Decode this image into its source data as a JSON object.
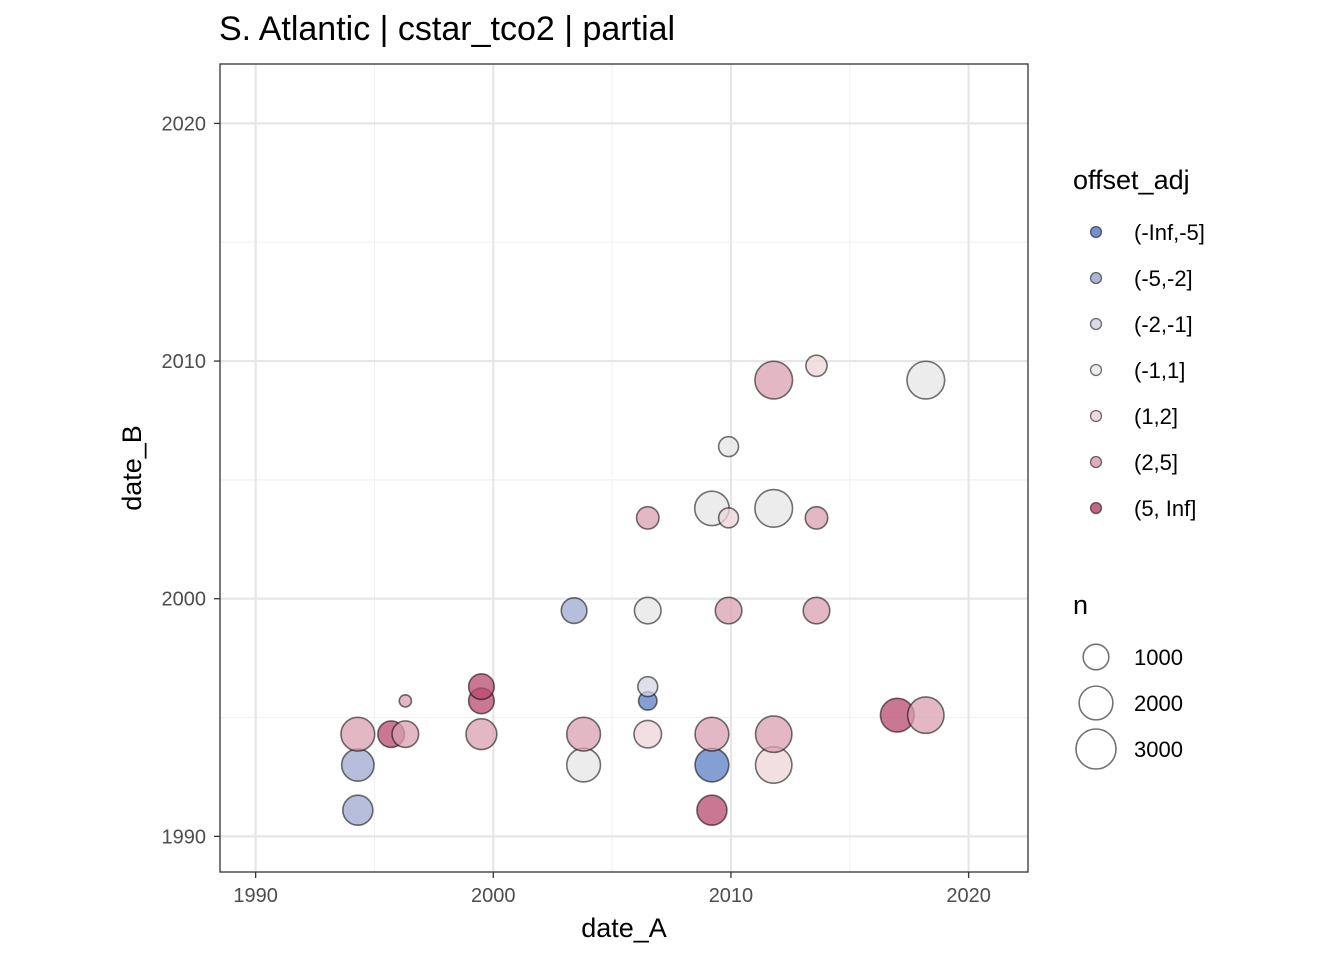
{
  "chart_data": {
    "type": "scatter",
    "title": "S. Atlantic | cstar_tco2 | partial",
    "xlabel": "date_A",
    "ylabel": "date_B",
    "xlim": [
      1988.5,
      2022.5
    ],
    "ylim": [
      1988.5,
      2022.5
    ],
    "x_ticks": [
      1990,
      2000,
      2010,
      2020
    ],
    "y_ticks": [
      1990,
      2000,
      2010,
      2020
    ],
    "x_tick_labels": [
      "1990",
      "2000",
      "2010",
      "2020"
    ],
    "y_tick_labels": [
      "1990",
      "2000",
      "2010",
      "2020"
    ],
    "grid": true,
    "legend_position": "right",
    "color_legend": {
      "title": "offset_adj",
      "categories": [
        "(-Inf,-5]",
        "(-5,-2]",
        "(-2,-1]",
        "(-1,1]",
        "(1,2]",
        "(2,5]",
        "(5, Inf]"
      ],
      "colors": [
        "#5a7fc4",
        "#9fa8d0",
        "#d4d4e4",
        "#e6e6e6",
        "#ecd4d8",
        "#d9a0b0",
        "#b84a70"
      ]
    },
    "size_legend": {
      "title": "n",
      "values": [
        1000,
        2000,
        3000
      ],
      "labels": [
        "1000",
        "2000",
        "3000"
      ]
    },
    "points": [
      {
        "x": 1994.3,
        "y": 1991.1,
        "n": 1500,
        "cat": "(-5,-2]"
      },
      {
        "x": 1994.3,
        "y": 1993.0,
        "n": 1800,
        "cat": "(-5,-2]"
      },
      {
        "x": 1994.3,
        "y": 1994.3,
        "n": 2000,
        "cat": "(2,5]"
      },
      {
        "x": 1995.7,
        "y": 1994.3,
        "n": 1100,
        "cat": "(5, Inf]"
      },
      {
        "x": 1996.3,
        "y": 1994.3,
        "n": 1100,
        "cat": "(2,5]"
      },
      {
        "x": 1996.3,
        "y": 1995.7,
        "n": 100,
        "cat": "(2,5]"
      },
      {
        "x": 1999.5,
        "y": 1994.3,
        "n": 1600,
        "cat": "(2,5]"
      },
      {
        "x": 1999.5,
        "y": 1995.7,
        "n": 1000,
        "cat": "(5, Inf]"
      },
      {
        "x": 1999.5,
        "y": 1996.3,
        "n": 1000,
        "cat": "(5, Inf]"
      },
      {
        "x": 2003.4,
        "y": 1999.5,
        "n": 1000,
        "cat": "(-5,-2]"
      },
      {
        "x": 2003.8,
        "y": 1993.0,
        "n": 2000,
        "cat": "(-1,1]"
      },
      {
        "x": 2003.8,
        "y": 1994.3,
        "n": 2000,
        "cat": "(2,5]"
      },
      {
        "x": 2006.5,
        "y": 1994.3,
        "n": 1200,
        "cat": "(1,2]"
      },
      {
        "x": 2006.5,
        "y": 1995.7,
        "n": 400,
        "cat": "(-Inf,-5]"
      },
      {
        "x": 2006.5,
        "y": 1996.3,
        "n": 500,
        "cat": "(-2,-1]"
      },
      {
        "x": 2006.5,
        "y": 1999.5,
        "n": 1100,
        "cat": "(-1,1]"
      },
      {
        "x": 2006.5,
        "y": 2003.4,
        "n": 700,
        "cat": "(2,5]"
      },
      {
        "x": 2009.2,
        "y": 1991.1,
        "n": 1500,
        "cat": "(5, Inf]"
      },
      {
        "x": 2009.2,
        "y": 1993.0,
        "n": 2000,
        "cat": "(-Inf,-5]"
      },
      {
        "x": 2009.2,
        "y": 1994.3,
        "n": 2000,
        "cat": "(2,5]"
      },
      {
        "x": 2009.2,
        "y": 2003.8,
        "n": 2100,
        "cat": "(-1,1]"
      },
      {
        "x": 2009.9,
        "y": 1999.5,
        "n": 1100,
        "cat": "(2,5]"
      },
      {
        "x": 2009.9,
        "y": 2003.4,
        "n": 500,
        "cat": "(1,2]"
      },
      {
        "x": 2009.9,
        "y": 2006.4,
        "n": 500,
        "cat": "(-1,1]"
      },
      {
        "x": 2011.8,
        "y": 1993.0,
        "n": 2400,
        "cat": "(1,2]"
      },
      {
        "x": 2011.8,
        "y": 1994.3,
        "n": 2400,
        "cat": "(2,5]"
      },
      {
        "x": 2011.8,
        "y": 2003.8,
        "n": 2600,
        "cat": "(-1,1]"
      },
      {
        "x": 2011.8,
        "y": 2009.2,
        "n": 2600,
        "cat": "(2,5]"
      },
      {
        "x": 2013.6,
        "y": 1999.5,
        "n": 1100,
        "cat": "(2,5]"
      },
      {
        "x": 2013.6,
        "y": 2003.4,
        "n": 700,
        "cat": "(2,5]"
      },
      {
        "x": 2013.6,
        "y": 2009.8,
        "n": 600,
        "cat": "(1,2]"
      },
      {
        "x": 2017.0,
        "y": 1995.1,
        "n": 2000,
        "cat": "(5, Inf]"
      },
      {
        "x": 2018.2,
        "y": 1995.1,
        "n": 2400,
        "cat": "(2,5]"
      },
      {
        "x": 2018.2,
        "y": 2009.2,
        "n": 2600,
        "cat": "(-1,1]"
      }
    ]
  }
}
